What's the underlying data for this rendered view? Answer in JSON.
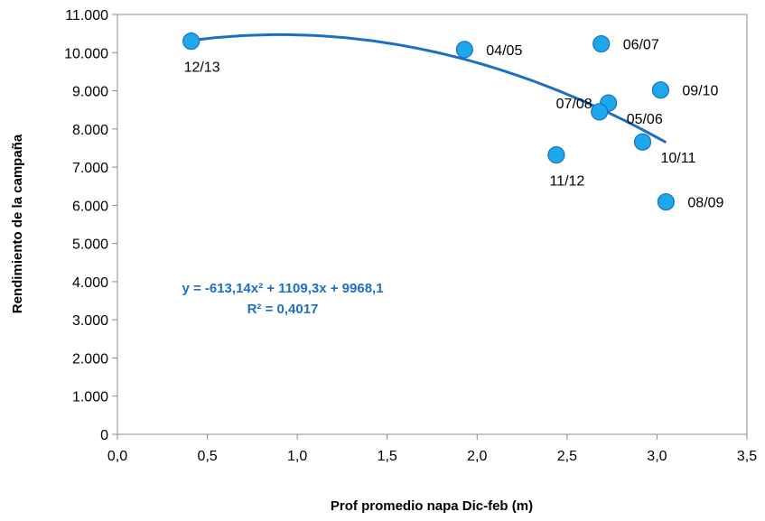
{
  "chart_data": {
    "type": "scatter",
    "xlabel": "Prof promedio napa  Dic-feb (m)",
    "ylabel": "Rendimiento de la campaña",
    "xlim": [
      0,
      3.5
    ],
    "ylim": [
      0,
      11000
    ],
    "x_ticks": [
      {
        "value": 0,
        "label": "0,0"
      },
      {
        "value": 0.5,
        "label": "0,5"
      },
      {
        "value": 1,
        "label": "1,0"
      },
      {
        "value": 1.5,
        "label": "1,5"
      },
      {
        "value": 2,
        "label": "2,0"
      },
      {
        "value": 2.5,
        "label": "2,5"
      },
      {
        "value": 3,
        "label": "3,0"
      },
      {
        "value": 3.5,
        "label": "3,5"
      }
    ],
    "y_ticks": [
      {
        "value": 0,
        "label": "0"
      },
      {
        "value": 1000,
        "label": "1.000"
      },
      {
        "value": 2000,
        "label": "2.000"
      },
      {
        "value": 3000,
        "label": "3.000"
      },
      {
        "value": 4000,
        "label": "4.000"
      },
      {
        "value": 5000,
        "label": "5.000"
      },
      {
        "value": 6000,
        "label": "6.000"
      },
      {
        "value": 7000,
        "label": "7.000"
      },
      {
        "value": 8000,
        "label": "8.000"
      },
      {
        "value": 9000,
        "label": "9.000"
      },
      {
        "value": 10000,
        "label": "10.000"
      },
      {
        "value": 11000,
        "label": "11.000"
      }
    ],
    "points": [
      {
        "label": "12/13",
        "x": 0.41,
        "y": 10300,
        "label_pos": "below"
      },
      {
        "label": "04/05",
        "x": 1.93,
        "y": 10080,
        "label_pos": "right"
      },
      {
        "label": "06/07",
        "x": 2.69,
        "y": 10230,
        "label_pos": "right"
      },
      {
        "label": "09/10",
        "x": 3.02,
        "y": 9020,
        "label_pos": "right"
      },
      {
        "label": "05/06",
        "x": 2.73,
        "y": 8680,
        "label_pos": "below-right"
      },
      {
        "label": "07/08",
        "x": 2.68,
        "y": 8450,
        "label_pos": "left"
      },
      {
        "label": "10/11",
        "x": 2.92,
        "y": 7660,
        "label_pos": "below-right"
      },
      {
        "label": "11/12",
        "x": 2.44,
        "y": 7320,
        "label_pos": "below"
      },
      {
        "label": "08/09",
        "x": 3.05,
        "y": 6090,
        "label_pos": "right"
      }
    ],
    "marker_color": "#1ea7ea",
    "marker_edge_color": "#1f6fc0",
    "trendline": {
      "type": "polynomial",
      "order": 2,
      "coefficients": [
        -613.14,
        1109.3,
        9968.1
      ],
      "x_range": [
        0.41,
        3.05
      ],
      "color": "#1f6fc0",
      "equation_text": "y = -613,14x² + 1109,3x + 9968,1",
      "r2_text": "R² = 0,4017"
    },
    "grid": false,
    "legend": "none"
  }
}
